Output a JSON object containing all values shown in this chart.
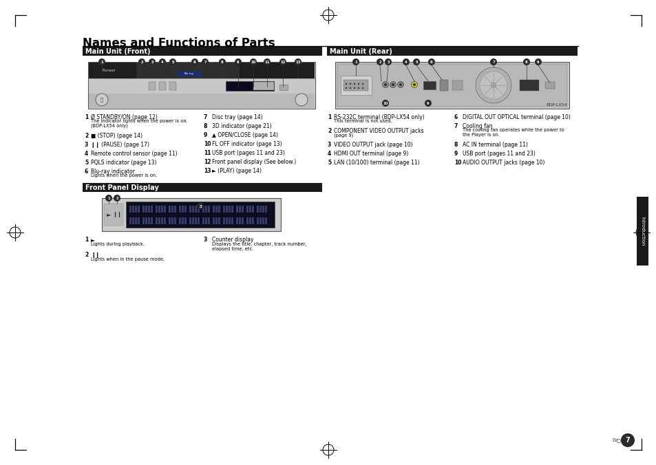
{
  "title": "Names and Functions of Parts",
  "page_bg": "#ffffff",
  "header_bg": "#1a1a1a",
  "header_text": "#ffffff",
  "section_headers": [
    "Main Unit (Front)",
    "Main Unit (Rear)",
    "Front Panel Display"
  ],
  "front_labels_col1": [
    [
      "1",
      "Ø STANDBY/ON (page 12)",
      "The indicator lights when the power is on.\n(BDP-LX54 only)"
    ],
    [
      "2",
      "■ (STOP) (page 14)",
      ""
    ],
    [
      "3",
      "❙❙ (PAUSE) (page 17)",
      ""
    ],
    [
      "4",
      "Remote control sensor (page 11)",
      ""
    ],
    [
      "5",
      "PQLS indicator (page 13)",
      ""
    ],
    [
      "6",
      "Blu-ray indicator",
      "Lights when the power is on."
    ]
  ],
  "front_labels_col2": [
    [
      "7",
      "Disc tray (page 14)",
      ""
    ],
    [
      "8",
      "3D indicator (page 21)",
      ""
    ],
    [
      "9",
      "▲ OPEN/CLOSE (page 14)",
      ""
    ],
    [
      "10",
      "FL OFF indicator (page 13)",
      ""
    ],
    [
      "11",
      "USB port (pages 11 and 23)",
      ""
    ],
    [
      "12",
      "Front panel display (See below.)",
      ""
    ],
    [
      "13",
      "► (PLAY) (page 14)",
      ""
    ]
  ],
  "rear_labels_col1": [
    [
      "1",
      "RS-232C terminal (BDP-LX54 only)",
      "This terminal is not used."
    ],
    [
      "2",
      "COMPONENT VIDEO OUTPUT jacks",
      "(page 9)"
    ],
    [
      "3",
      "VIDEO OUTPUT jack (page 10)",
      ""
    ],
    [
      "4",
      "HDMI OUT terminal (page 9)",
      ""
    ],
    [
      "5",
      "LAN (10/100) terminal (page 11)",
      ""
    ]
  ],
  "rear_labels_col2": [
    [
      "6",
      "DIGITAL OUT OPTICAL terminal (page 10)",
      ""
    ],
    [
      "7",
      "Cooling fan",
      "The cooling fan operates while the power to\nthe Player is on."
    ],
    [
      "8",
      "AC IN terminal (page 11)",
      ""
    ],
    [
      "9",
      "USB port (pages 11 and 23)",
      ""
    ],
    [
      "10",
      "AUDIO OUTPUT jacks (page 10)",
      ""
    ]
  ],
  "fpd_labels_col1": [
    [
      "1",
      "►",
      "Lights during playback."
    ],
    [
      "2",
      "❙❙",
      "Lights when in the pause mode."
    ]
  ],
  "fpd_labels_col2": [
    [
      "3",
      "Counter display",
      "Displays the title, chapter, track number,\nelapsed time, etc."
    ]
  ]
}
